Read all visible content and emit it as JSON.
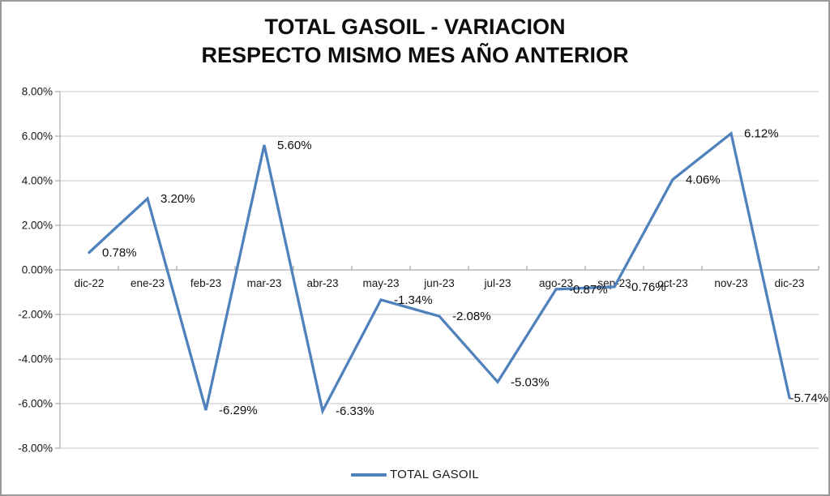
{
  "frame": {
    "background": "#FFFFFF",
    "border_color": "#9A9A9A"
  },
  "title": {
    "line1": "TOTAL GASOIL - VARIACION",
    "line2": "RESPECTO MISMO MES AÑO ANTERIOR"
  },
  "legend": {
    "label": "TOTAL GASOIL"
  },
  "chart_data": {
    "type": "line",
    "title": "TOTAL GASOIL - VARIACION RESPECTO MISMO MES AÑO ANTERIOR",
    "categories": [
      "dic-22",
      "ene-23",
      "feb-23",
      "mar-23",
      "abr-23",
      "may-23",
      "jun-23",
      "jul-23",
      "ago-23",
      "sep-23",
      "oct-23",
      "nov-23",
      "dic-23"
    ],
    "series": [
      {
        "name": "TOTAL GASOIL",
        "color": "#4F81BD",
        "values": [
          0.78,
          3.2,
          -6.29,
          5.6,
          -6.33,
          -1.34,
          -2.08,
          -5.03,
          -0.87,
          -0.76,
          4.06,
          6.12,
          -5.74
        ]
      }
    ],
    "data_labels": [
      "0.78%",
      "3.20%",
      "-6.29%",
      "5.60%",
      "-6.33%",
      "-1.34%",
      "-2.08%",
      "-5.03%",
      "-0.87%",
      "-0.76%",
      "4.06%",
      "6.12%",
      "-5.74%"
    ],
    "ylim": [
      -8,
      8
    ],
    "ytick_step": 2,
    "ytick_labels": [
      "8.00%",
      "6.00%",
      "4.00%",
      "2.00%",
      "0.00%",
      "-2.00%",
      "-4.00%",
      "-6.00%",
      "-8.00%"
    ],
    "xlabel": "",
    "ylabel": "",
    "grid": true,
    "legend_position": "bottom",
    "colors": {
      "gridline": "#C6C6C6",
      "axis": "#9A9A9A",
      "text": "#161616"
    }
  }
}
